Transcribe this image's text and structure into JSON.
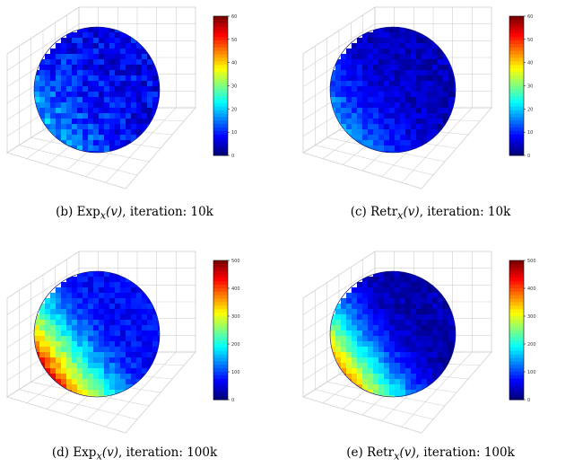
{
  "panels": [
    {
      "caption_label": "(b)",
      "op": "Exp",
      "iteration_text": ", iteration:  10k",
      "colorbar_ticks": [
        "60",
        "50",
        "40",
        "30",
        "20",
        "10",
        "0"
      ]
    },
    {
      "caption_label": "(c)",
      "op": "Retr",
      "iteration_text": ", iteration:  10k",
      "colorbar_ticks": [
        "60",
        "50",
        "40",
        "30",
        "20",
        "10",
        "0"
      ]
    },
    {
      "caption_label": "(d)",
      "op": "Exp",
      "iteration_text": ", iteration:  100k",
      "colorbar_ticks": [
        "500",
        "400",
        "300",
        "200",
        "100",
        "0"
      ]
    },
    {
      "caption_label": "(e)",
      "op": "Retr",
      "iteration_text": ", iteration:  100k",
      "colorbar_ticks": [
        "500",
        "400",
        "300",
        "200",
        "100",
        "0"
      ]
    }
  ],
  "math": {
    "subscript": "x",
    "argument": "(v)"
  },
  "colormap": "jet",
  "colors": {
    "low": "#00008f",
    "mid": "#00ffff",
    "high": "#800000",
    "grid": "#d0d0d0"
  }
}
